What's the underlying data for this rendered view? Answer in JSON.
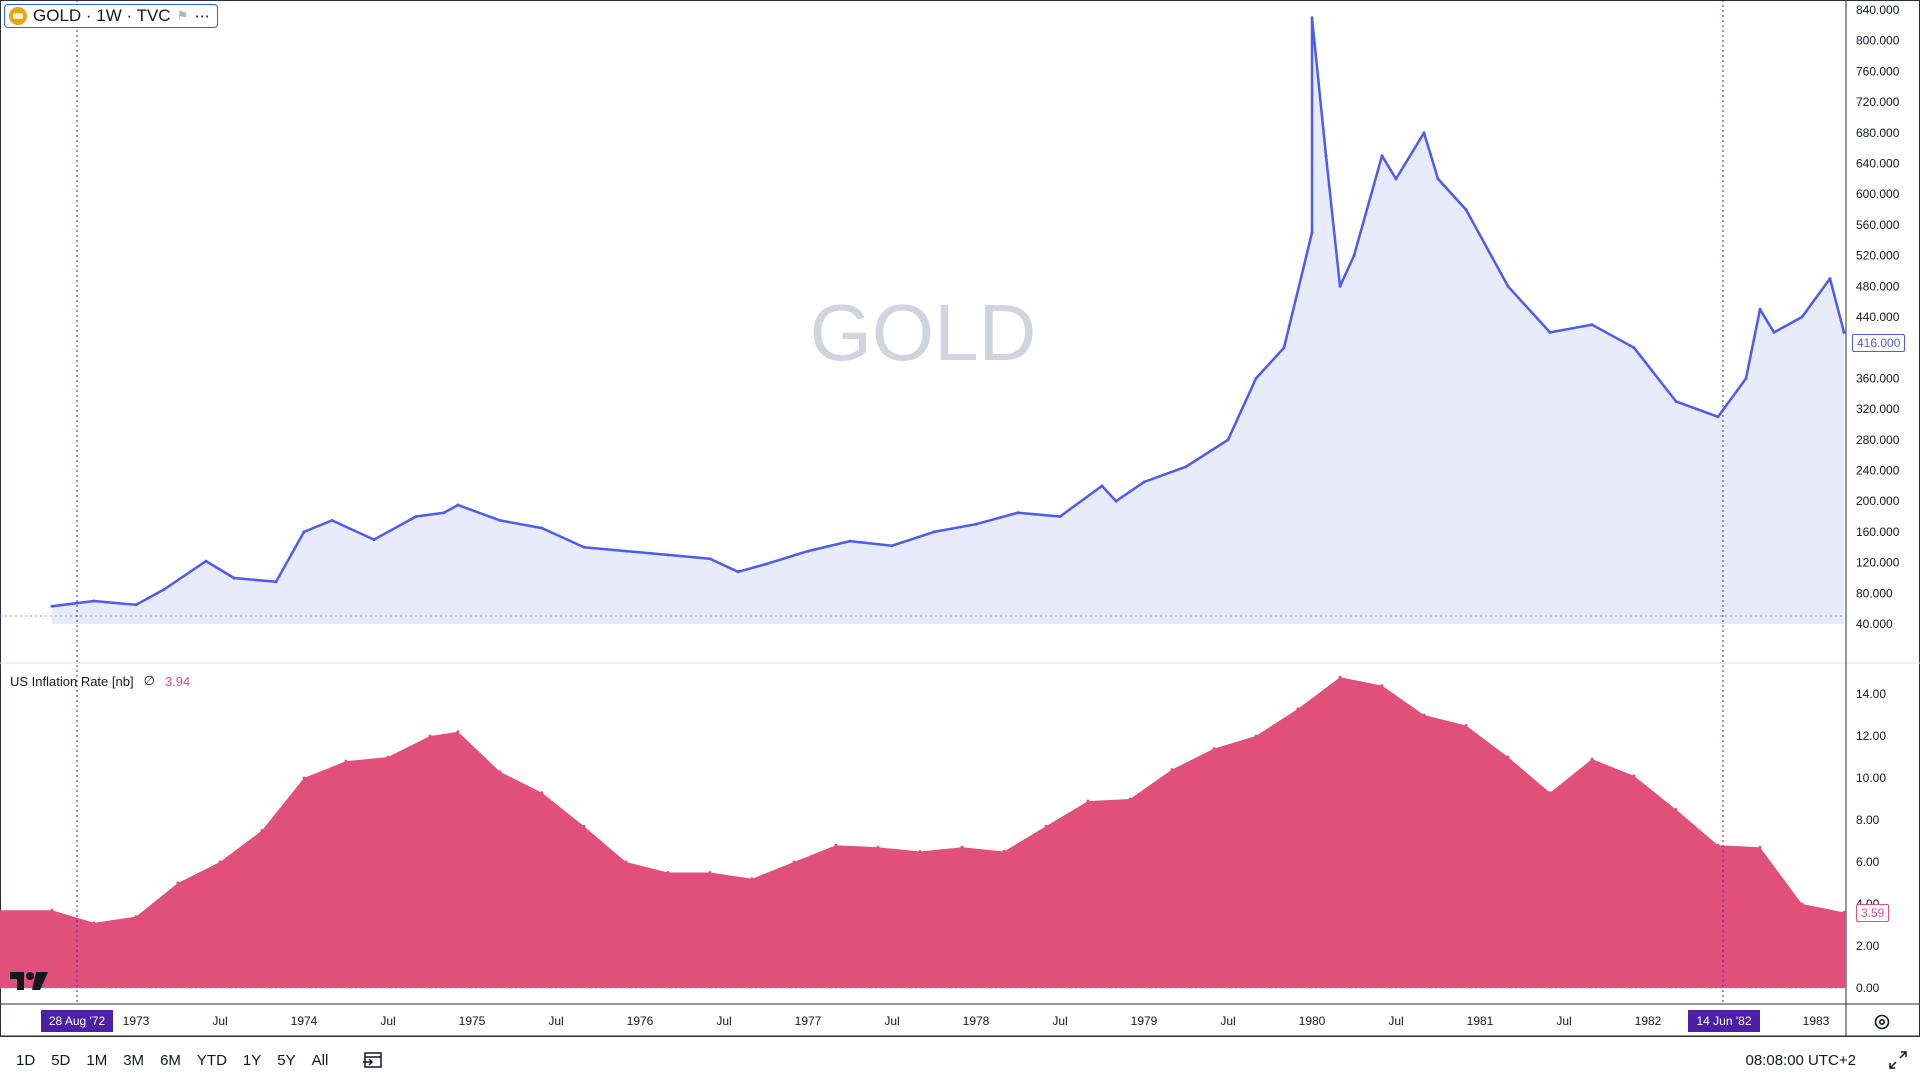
{
  "header": {
    "symbol_label": "GOLD · 1W · TVC",
    "watermark": "GOLD"
  },
  "indicator": {
    "label": "US Inflation Rate [nb]",
    "symbol": "∅",
    "value": "3.94",
    "last_tag": "3.59"
  },
  "price_tag": "416.000",
  "crosshair": {
    "left_date": "28 Aug '72",
    "right_date": "14 Jun '82"
  },
  "timeframes": [
    "1D",
    "5D",
    "1M",
    "3M",
    "6M",
    "YTD",
    "1Y",
    "5Y",
    "All"
  ],
  "clock": "08:08:00 UTC+2",
  "colors": {
    "gold_line": "#4c5bf0",
    "gold_fill": "#e8ebfb",
    "inflation": "#e0507a",
    "crosshair": "#4b1fa8"
  },
  "icons": [
    "gold-logo-icon",
    "flag-icon",
    "more-icon",
    "tradingview-logo-icon",
    "compare-icon",
    "expand-icon",
    "settings-icon"
  ],
  "chart_data": [
    {
      "type": "area",
      "series": [
        {
          "name": "GOLD",
          "x": [
            "1972-07",
            "1972-10",
            "1973-01",
            "1973-03",
            "1973-06",
            "1973-08",
            "1973-11",
            "1974-01",
            "1974-03",
            "1974-06",
            "1974-09",
            "1974-11",
            "1974-12",
            "1975-03",
            "1975-06",
            "1975-09",
            "1975-12",
            "1976-03",
            "1976-06",
            "1976-08",
            "1976-10",
            "1977-01",
            "1977-04",
            "1977-07",
            "1977-10",
            "1978-01",
            "1978-04",
            "1978-07",
            "1978-10",
            "1978-11",
            "1979-01",
            "1979-04",
            "1979-07",
            "1979-09",
            "1979-11",
            "1980-01",
            "1980-01",
            "1980-02",
            "1980-03",
            "1980-04",
            "1980-06",
            "1980-07",
            "1980-09",
            "1980-10",
            "1980-12",
            "1981-03",
            "1981-06",
            "1981-09",
            "1981-12",
            "1982-03",
            "1982-06",
            "1982-08",
            "1982-09",
            "1982-10",
            "1982-12",
            "1983-02",
            "1983-03"
          ],
          "values": [
            63,
            70,
            65,
            85,
            122,
            100,
            95,
            160,
            175,
            150,
            180,
            185,
            195,
            175,
            165,
            140,
            135,
            130,
            125,
            108,
            118,
            135,
            148,
            142,
            160,
            170,
            185,
            180,
            220,
            200,
            225,
            245,
            280,
            360,
            400,
            550,
            830,
            650,
            480,
            520,
            650,
            620,
            680,
            620,
            580,
            480,
            420,
            430,
            400,
            330,
            310,
            360,
            450,
            420,
            440,
            490,
            420
          ]
        }
      ],
      "ylim": [
        0,
        840
      ],
      "yticks": [
        "40.000",
        "80.000",
        "120.000",
        "160.000",
        "200.000",
        "240.000",
        "280.000",
        "320.000",
        "360.000",
        "400.000",
        "440.000",
        "480.000",
        "520.000",
        "560.000",
        "600.000",
        "640.000",
        "680.000",
        "720.000",
        "760.000",
        "800.000",
        "840.000"
      ],
      "xticks": [
        "1973",
        "Jul",
        "1974",
        "Jul",
        "1975",
        "Jul",
        "1976",
        "Jul",
        "1977",
        "Jul",
        "1978",
        "Jul",
        "1979",
        "Jul",
        "1980",
        "Jul",
        "1981",
        "Jul",
        "1982",
        "1983"
      ],
      "grid": false
    },
    {
      "type": "area",
      "series": [
        {
          "name": "US Inflation Rate [nb]",
          "x": [
            "1972-07",
            "1972-10",
            "1973-01",
            "1973-04",
            "1973-07",
            "1973-10",
            "1974-01",
            "1974-04",
            "1974-07",
            "1974-10",
            "1974-12",
            "1975-03",
            "1975-06",
            "1975-09",
            "1975-12",
            "1976-03",
            "1976-06",
            "1976-09",
            "1976-12",
            "1977-03",
            "1977-06",
            "1977-09",
            "1977-12",
            "1978-03",
            "1978-06",
            "1978-09",
            "1978-12",
            "1979-03",
            "1979-06",
            "1979-09",
            "1979-12",
            "1980-03",
            "1980-06",
            "1980-09",
            "1980-12",
            "1981-03",
            "1981-06",
            "1981-09",
            "1981-12",
            "1982-03",
            "1982-06",
            "1982-09",
            "1982-12",
            "1983-03"
          ],
          "values": [
            3.7,
            3.1,
            3.4,
            5.0,
            6.0,
            7.5,
            10.0,
            10.8,
            11.0,
            12.0,
            12.2,
            10.3,
            9.3,
            7.7,
            6.0,
            5.5,
            5.5,
            5.2,
            6.0,
            6.8,
            6.7,
            6.5,
            6.7,
            6.5,
            7.7,
            8.9,
            9.0,
            10.4,
            11.4,
            12.0,
            13.3,
            14.8,
            14.4,
            13.0,
            12.5,
            11.0,
            9.3,
            10.9,
            10.1,
            8.5,
            6.8,
            6.7,
            4.0,
            3.6
          ]
        }
      ],
      "ylim": [
        0,
        15
      ],
      "yticks": [
        "0.00",
        "2.00",
        "4.00",
        "6.00",
        "8.00",
        "10.00",
        "12.00",
        "14.00"
      ],
      "grid": false
    }
  ]
}
